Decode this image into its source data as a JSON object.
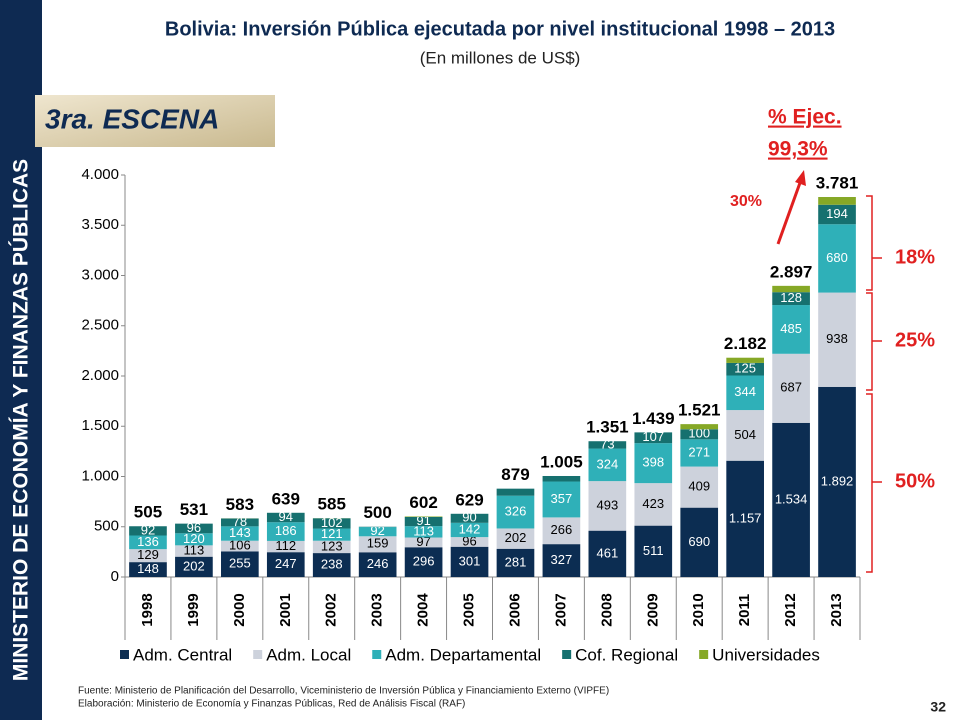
{
  "slide": {
    "sidebar": "MINISTERIO DE ECONOMÍA Y FINANZAS PÚBLICAS",
    "scene": "3ra. ESCENA",
    "footnotes": [
      "Fuente: Ministerio de Planificación del Desarrollo, Viceministerio de Inversión Pública y Financiamiento Externo (VIPFE)",
      "Elaboración: Ministerio de Economía y Finanzas Públicas, Red de Análisis Fiscal (RAF)"
    ],
    "page": "32"
  },
  "chart_data": {
    "type": "stacked-bar",
    "title": "Bolivia: Inversión Pública ejecutada por nivel institucional 1998 – 2013",
    "subtitle": "(En millones de US$)",
    "categories": [
      "1998",
      "1999",
      "2000",
      "2001",
      "2002",
      "2003",
      "2004",
      "2005",
      "2006",
      "2007",
      "2008",
      "2009",
      "2010",
      "2011",
      "2012",
      "2013"
    ],
    "series": [
      {
        "name": "Adm. Central",
        "color": "#0c2d52",
        "label_color": "#ffffff",
        "values": [
          148,
          202,
          255,
          247,
          238,
          246,
          296,
          301,
          281,
          327,
          461,
          511,
          690,
          1157,
          1534,
          1892
        ],
        "value_labels": [
          "148",
          "202",
          "255",
          "247",
          "238",
          "246",
          "296",
          "301",
          "281",
          "327",
          "461",
          "511",
          "690",
          "1.157",
          "1.534",
          "1.892"
        ]
      },
      {
        "name": "Adm. Local",
        "color": "#cdd2dc",
        "label_color": "#000000",
        "values": [
          129,
          113,
          106,
          112,
          123,
          159,
          97,
          96,
          202,
          266,
          493,
          423,
          409,
          504,
          687,
          938
        ],
        "value_labels": [
          "129",
          "113",
          "106",
          "112",
          "123",
          "159",
          "97",
          "96",
          "202",
          "266",
          "493",
          "423",
          "409",
          "504",
          "687",
          "938"
        ]
      },
      {
        "name": "Adm. Departamental",
        "color": "#2fb0b8",
        "label_color": "#ffffff",
        "values": [
          136,
          120,
          143,
          186,
          121,
          92,
          113,
          142,
          326,
          357,
          324,
          398,
          271,
          344,
          485,
          680
        ],
        "value_labels": [
          "136",
          "120",
          "143",
          "186",
          "121",
          "92",
          "113",
          "142",
          "326",
          "357",
          "324",
          "398",
          "271",
          "344",
          "485",
          "680"
        ]
      },
      {
        "name": "Cof. Regional",
        "color": "#16706f",
        "label_color": "#ffffff",
        "values": [
          92,
          96,
          78,
          94,
          102,
          3,
          91,
          90,
          70,
          55,
          73,
          107,
          100,
          125,
          128,
          194
        ],
        "value_labels": [
          "92",
          "96",
          "78",
          "94",
          "102",
          null,
          "91",
          "90",
          null,
          null,
          "73",
          "107",
          "100",
          "125",
          "128",
          "194"
        ]
      },
      {
        "name": "Universidades",
        "color": "#86a826",
        "label_color": "#ffffff",
        "values": [
          0,
          0,
          1,
          0,
          1,
          0,
          5,
          0,
          0,
          0,
          0,
          0,
          51,
          52,
          63,
          77
        ],
        "value_labels": [
          null,
          null,
          null,
          null,
          null,
          null,
          null,
          null,
          null,
          null,
          null,
          null,
          null,
          null,
          null,
          null
        ]
      }
    ],
    "totals": {
      "values": [
        505,
        531,
        583,
        639,
        585,
        500,
        602,
        629,
        879,
        1005,
        1351,
        1439,
        1521,
        2182,
        2897,
        3781
      ],
      "value_labels": [
        "505",
        "531",
        "583",
        "639",
        "585",
        "500",
        "602",
        "629",
        "879",
        "1.005",
        "1.351",
        "1.439",
        "1.521",
        "2.182",
        "2.897",
        "3.781"
      ]
    },
    "ylim": [
      0,
      4000
    ],
    "yticks": [
      0,
      500,
      {
        "value": 1000,
        "label": "1.000"
      },
      {
        "value": 1500,
        "label": "1.500"
      },
      {
        "value": 2000,
        "label": "2.000"
      },
      {
        "value": 2500,
        "label": "2.500"
      },
      {
        "value": 3000,
        "label": "3.000"
      },
      {
        "value": 3500,
        "label": "3.500"
      },
      {
        "value": 4000,
        "label": "4.000"
      }
    ],
    "annotations": {
      "execution": [
        "% Ejec.",
        "99,3%"
      ],
      "growth": "30%",
      "shares": [
        "18%",
        "25%",
        "50%"
      ]
    }
  }
}
